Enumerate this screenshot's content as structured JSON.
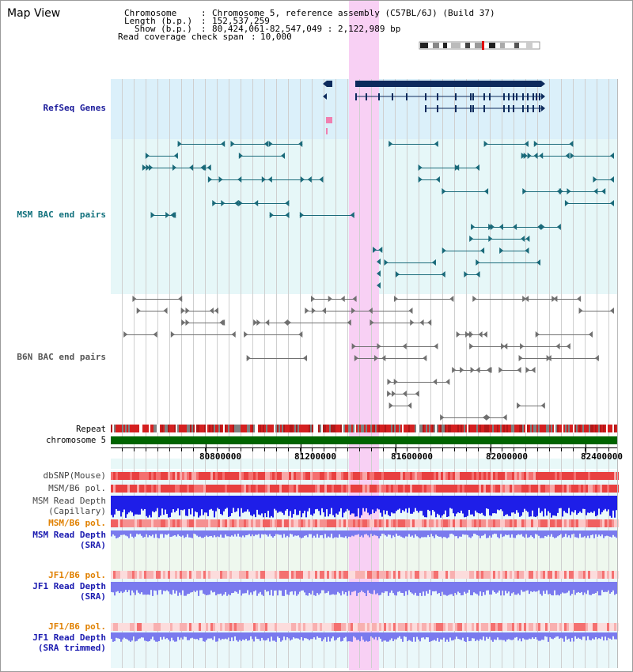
{
  "window": {
    "title": "Map View"
  },
  "info": {
    "chromosome_key": "Chromosome",
    "chromosome_value": "Chromosome 5, reference assembly (C57BL/6J) (Build 37)",
    "length_key": "Length (b.p.)",
    "length_value": "152,537,259",
    "show_key": "Show (b.p.)",
    "show_value": "80,424,061-82,547,049 : 2,122,989 bp",
    "span_key": "Read coverage check span",
    "span_value": "10,000"
  },
  "tracks": {
    "refseq": "RefSeq Genes",
    "msm_bac": "MSM BAC end pairs",
    "b6n_bac": "B6N BAC end pairs",
    "repeat": "Repeat",
    "chromosome": "chromosome 5",
    "dbsnp": "dbSNP(Mouse)",
    "msm_b6_pol": "MSM/B6 pol.",
    "msm_depth_cap_1": "MSM Read Depth",
    "msm_depth_cap_2": "(Capillary)",
    "msm_b6_pol_sra": "MSM/B6 pol.",
    "msm_depth_sra_1": "MSM Read Depth",
    "msm_depth_sra_2": "(SRA)",
    "jf1_b6_pol": "JF1/B6 pol.",
    "jf1_depth_1": "JF1 Read Depth",
    "jf1_depth_2": "(SRA)",
    "jf1_b6_pol_trim": "JF1/B6 pol.",
    "jf1_trim_1": "JF1 Read Depth",
    "jf1_trim_2": "(SRA trimmed)"
  },
  "axis": {
    "ticks": [
      "80800000",
      "81200000",
      "81600000",
      "82000000",
      "82400000"
    ]
  },
  "colors": {
    "highlight": "#f8d0f4",
    "refseq_bg": "#dbf0fa",
    "bac_bg": "#e6f7f8",
    "gene_navy": "#0c2a5c",
    "msm_teal": "#1a6a7a",
    "b6n_gray": "#707070",
    "chrom_green": "#006400",
    "snp_red": "#e84040",
    "depth_blue": "#1e1ee8",
    "depth_light": "#7a7aee"
  }
}
